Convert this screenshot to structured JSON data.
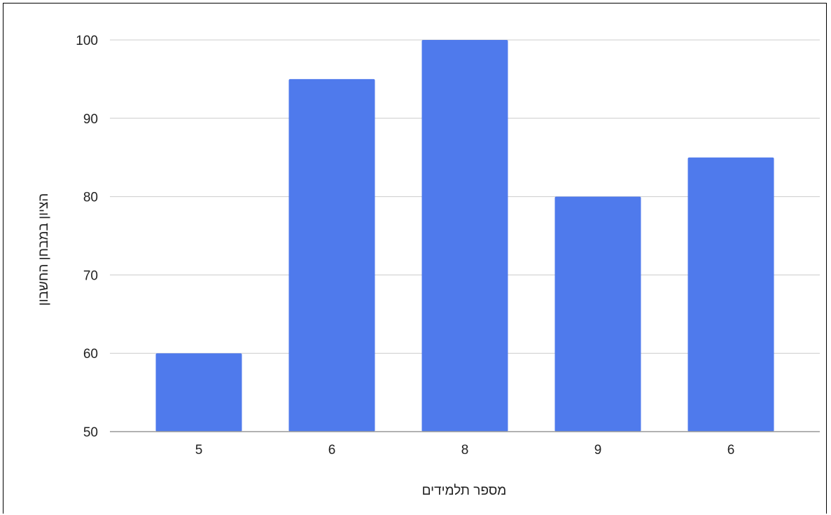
{
  "chart_data": {
    "type": "bar",
    "title": "",
    "xlabel": "מספר תלמידים",
    "ylabel": "הציון במבחן החשבון",
    "categories": [
      "5",
      "6",
      "8",
      "9",
      "6"
    ],
    "values": [
      60,
      95,
      100,
      80,
      85
    ],
    "ylim": [
      50,
      100
    ],
    "yticks": [
      50,
      60,
      70,
      80,
      90,
      100
    ],
    "grid": true,
    "legend": "none",
    "bar_color": "#4F7AEC",
    "grid_color": "#CCCCCC",
    "axis_color": "#999999",
    "text_color": "#222222"
  }
}
